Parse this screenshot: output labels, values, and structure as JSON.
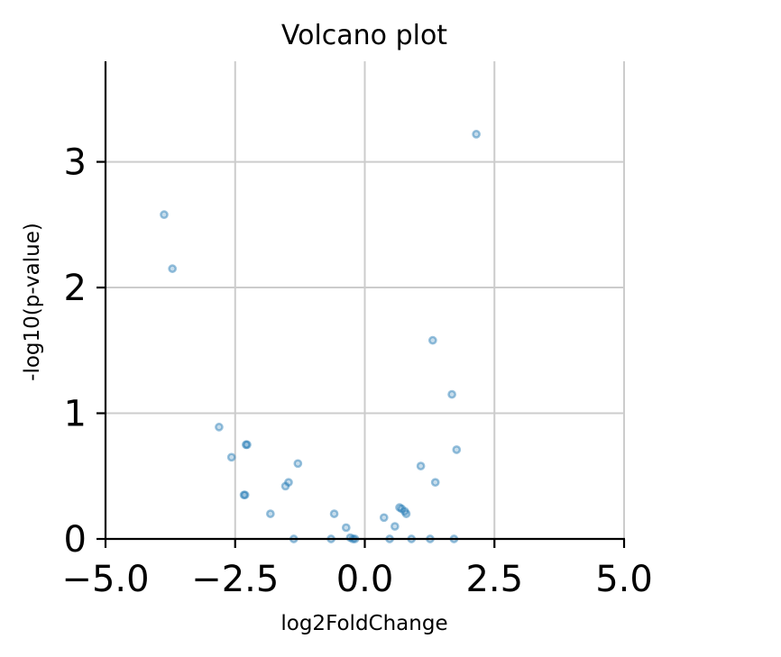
{
  "chart_data": {
    "type": "scatter",
    "title": "Volcano plot",
    "xlabel": "log2FoldChange",
    "ylabel": "-log10(p-value)",
    "xlim": [
      -5.0,
      5.0
    ],
    "ylim": [
      0,
      3.8
    ],
    "xticks": [
      -5.0,
      -2.5,
      0.0,
      2.5,
      5.0
    ],
    "xtick_labels": [
      "−5.0",
      "−2.5",
      "0.0",
      "2.5",
      "5.0"
    ],
    "yticks": [
      0,
      1,
      2,
      3
    ],
    "ytick_labels": [
      "0",
      "1",
      "2",
      "3"
    ],
    "grid": true,
    "color": "#1f77b4",
    "points": [
      {
        "x": -3.87,
        "y": 2.58
      },
      {
        "x": -3.71,
        "y": 2.15
      },
      {
        "x": -2.81,
        "y": 0.89
      },
      {
        "x": -2.57,
        "y": 0.65
      },
      {
        "x": -2.29,
        "y": 0.75
      },
      {
        "x": -2.27,
        "y": 0.75
      },
      {
        "x": -2.33,
        "y": 0.35
      },
      {
        "x": -2.31,
        "y": 0.35
      },
      {
        "x": -1.82,
        "y": 0.2
      },
      {
        "x": -1.53,
        "y": 0.42
      },
      {
        "x": -1.47,
        "y": 0.45
      },
      {
        "x": -1.29,
        "y": 0.6
      },
      {
        "x": -1.37,
        "y": 0.0
      },
      {
        "x": -0.65,
        "y": 0.0
      },
      {
        "x": -0.59,
        "y": 0.2
      },
      {
        "x": -0.36,
        "y": 0.09
      },
      {
        "x": -0.28,
        "y": 0.01
      },
      {
        "x": -0.23,
        "y": 0.0
      },
      {
        "x": -0.19,
        "y": 0.0
      },
      {
        "x": 0.37,
        "y": 0.17
      },
      {
        "x": 0.48,
        "y": 0.0
      },
      {
        "x": 0.58,
        "y": 0.1
      },
      {
        "x": 0.67,
        "y": 0.25
      },
      {
        "x": 0.71,
        "y": 0.24
      },
      {
        "x": 0.77,
        "y": 0.22
      },
      {
        "x": 0.8,
        "y": 0.2
      },
      {
        "x": 0.9,
        "y": 0.0
      },
      {
        "x": 1.08,
        "y": 0.58
      },
      {
        "x": 1.26,
        "y": 0.0
      },
      {
        "x": 1.31,
        "y": 1.58
      },
      {
        "x": 1.36,
        "y": 0.45
      },
      {
        "x": 1.68,
        "y": 1.15
      },
      {
        "x": 1.72,
        "y": 0.0
      },
      {
        "x": 1.77,
        "y": 0.71
      },
      {
        "x": 2.15,
        "y": 3.22
      }
    ]
  }
}
